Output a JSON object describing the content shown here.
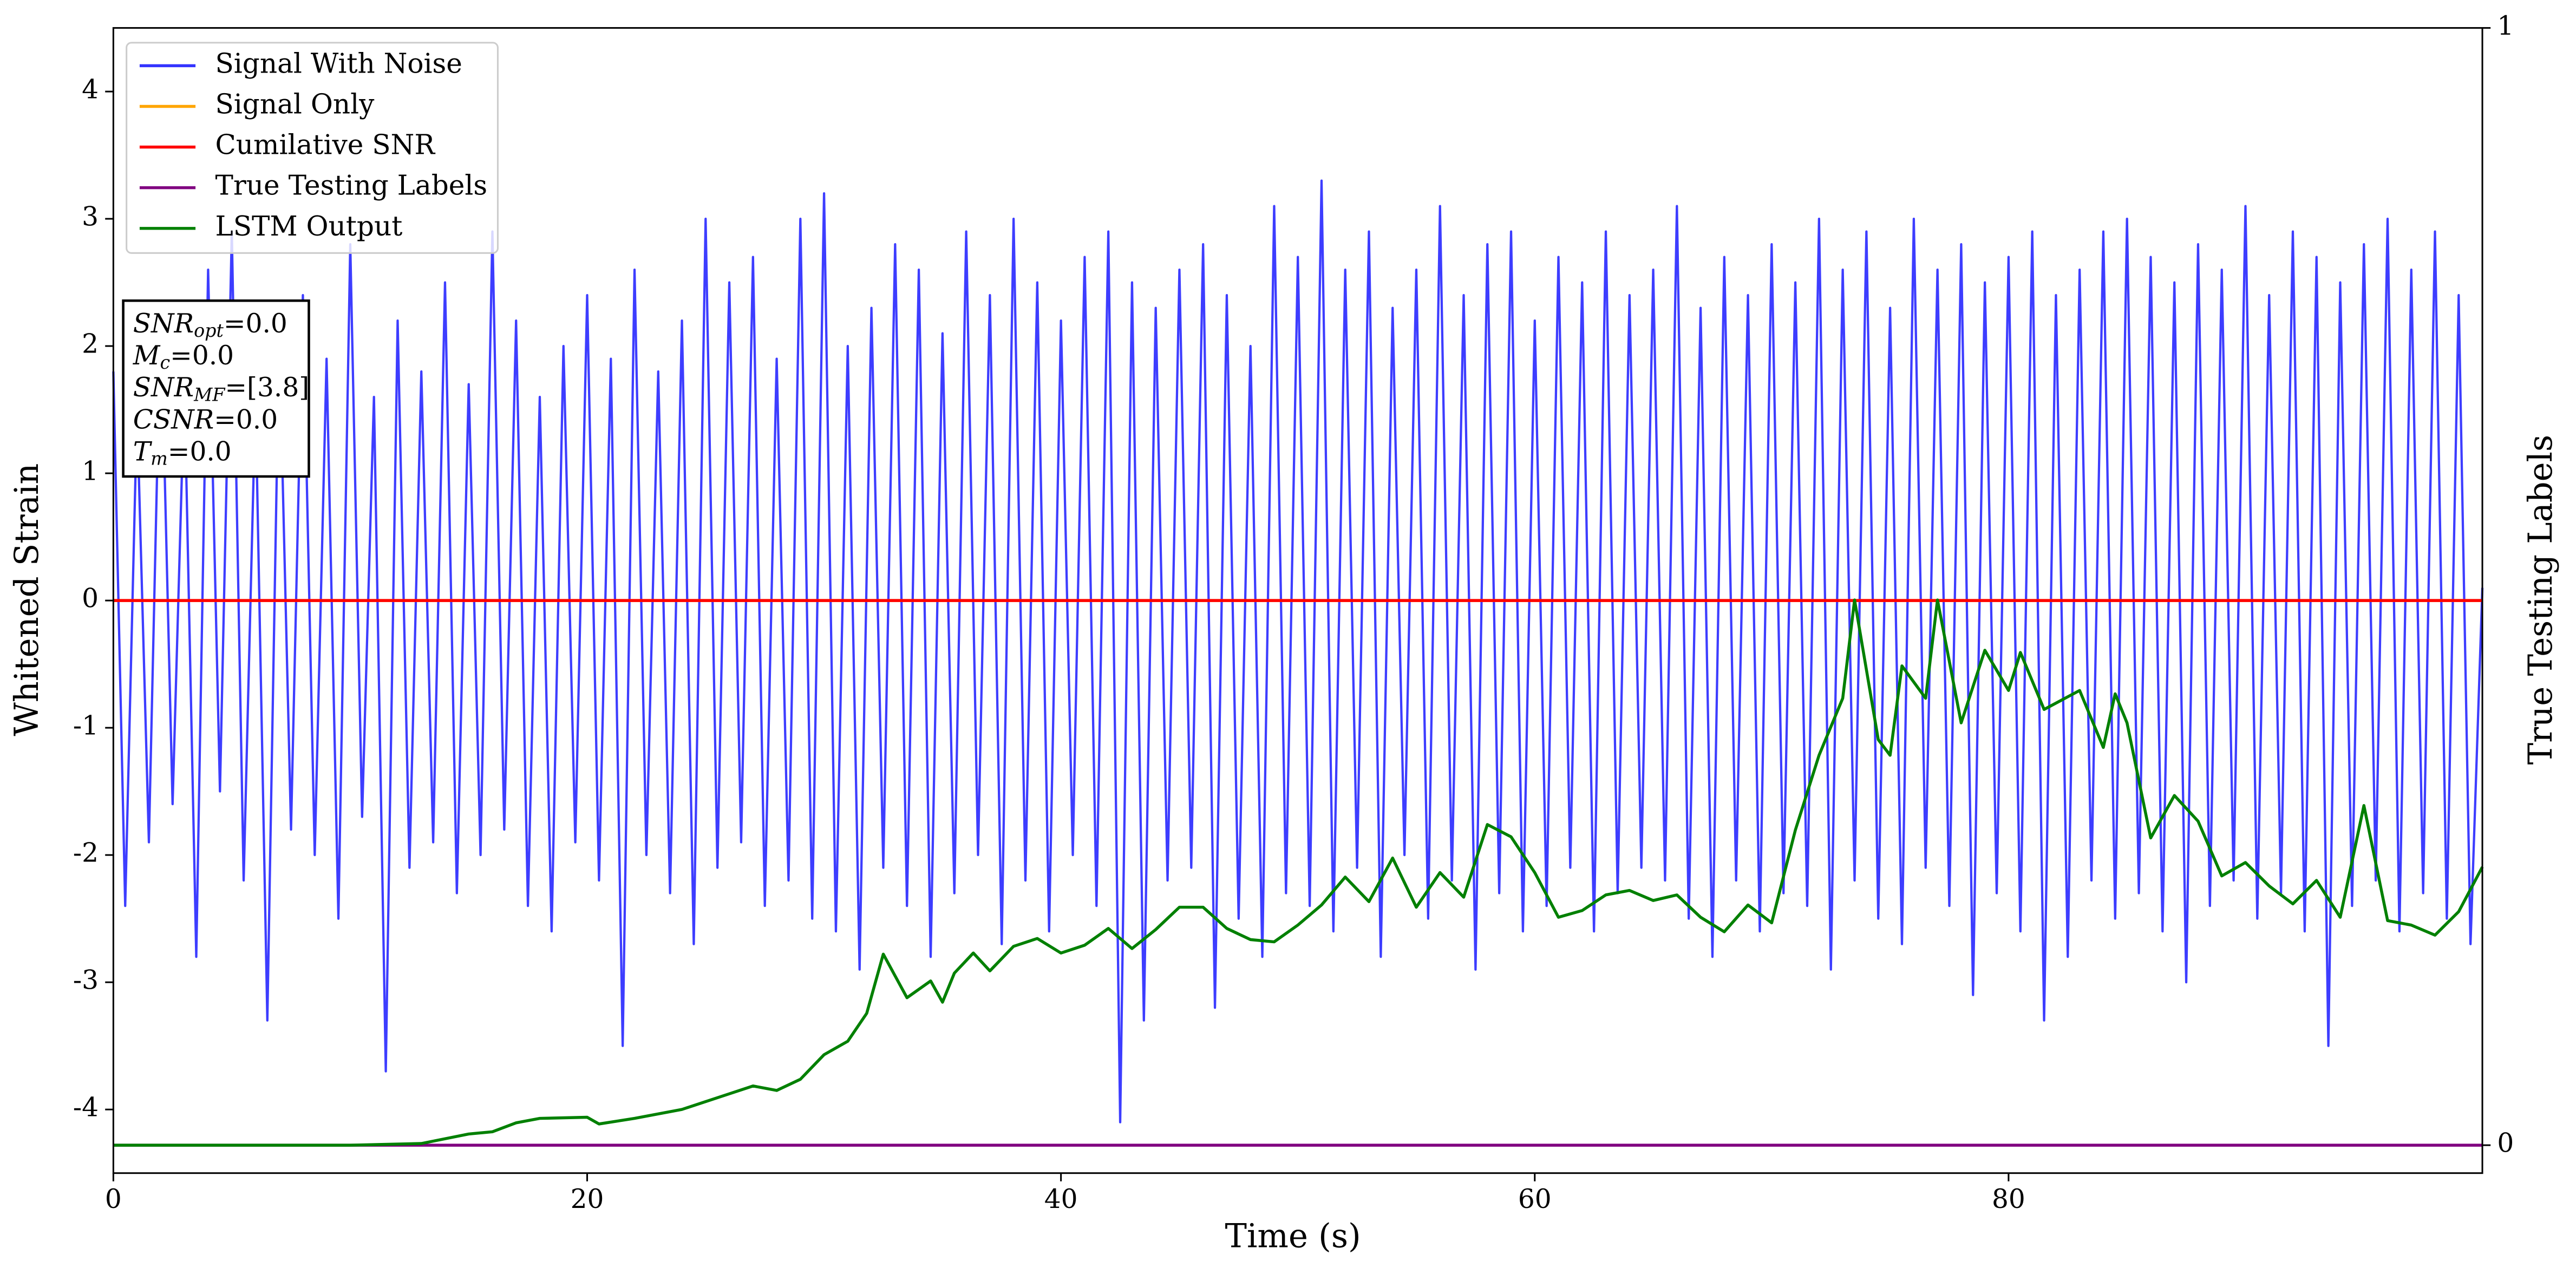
{
  "chart_data": {
    "type": "line",
    "xlabel": "Time (s)",
    "ylabel": "Whitened Strain",
    "y2label": "True Testing Labels",
    "xlim": [
      0,
      100
    ],
    "xticks": [
      0,
      20,
      40,
      60,
      80
    ],
    "ylim": [
      -4.5,
      4.5
    ],
    "yticks": [
      -4,
      -3,
      -2,
      -1,
      0,
      1,
      2,
      3,
      4
    ],
    "y2lim": [
      -0.025,
      1
    ],
    "y2ticks": [
      0,
      1
    ],
    "legend": "upper left",
    "annotation": [
      {
        "text": "SNR",
        "sub": "opt",
        "rest": "=0.0"
      },
      {
        "text": "M",
        "sub": "c",
        "rest": "=0.0"
      },
      {
        "text": "SNR",
        "sub": "MF",
        "rest": "=[3.8]"
      },
      {
        "text": "CSNR",
        "rest": "=0.0"
      },
      {
        "text": "T",
        "sub": "m",
        "rest": "=0.0"
      }
    ],
    "series": [
      {
        "name": "Signal With Noise",
        "color": "#3333ff",
        "x": [
          0,
          0.5,
          1,
          1.5,
          2,
          2.5,
          3,
          3.5,
          4,
          4.5,
          5,
          5.5,
          6,
          6.5,
          7,
          7.5,
          8,
          8.5,
          9,
          9.5,
          10,
          10.5,
          11,
          11.5,
          12,
          12.5,
          13,
          13.5,
          14,
          14.5,
          15,
          15.5,
          16,
          16.5,
          17,
          17.5,
          18,
          18.5,
          19,
          19.5,
          20,
          20.5,
          21,
          21.5,
          22,
          22.5,
          23,
          23.5,
          24,
          24.5,
          25,
          25.5,
          26,
          26.5,
          27,
          27.5,
          28,
          28.5,
          29,
          29.5,
          30,
          30.5,
          31,
          31.5,
          32,
          32.5,
          33,
          33.5,
          34,
          34.5,
          35,
          35.5,
          36,
          36.5,
          37,
          37.5,
          38,
          38.5,
          39,
          39.5,
          40,
          40.5,
          41,
          41.5,
          42,
          42.5,
          43,
          43.5,
          44,
          44.5,
          45,
          45.5,
          46,
          46.5,
          47,
          47.5,
          48,
          48.5,
          49,
          49.5,
          50,
          50.5,
          51,
          51.5,
          52,
          52.5,
          53,
          53.5,
          54,
          54.5,
          55,
          55.5,
          56,
          56.5,
          57,
          57.5,
          58,
          58.5,
          59,
          59.5,
          60,
          60.5,
          61,
          61.5,
          62,
          62.5,
          63,
          63.5,
          64,
          64.5,
          65,
          65.5,
          66,
          66.5,
          67,
          67.5,
          68,
          68.5,
          69,
          69.5,
          70,
          70.5,
          71,
          71.5,
          72,
          72.5,
          73,
          73.5,
          74,
          74.5,
          75,
          75.5,
          76,
          76.5,
          77,
          77.5,
          78,
          78.5,
          79,
          79.5,
          80,
          80.5,
          81,
          81.5,
          82,
          82.5,
          83,
          83.5,
          84,
          84.5,
          85,
          85.5,
          86,
          86.5,
          87,
          87.5,
          88,
          88.5,
          89,
          89.5,
          90,
          90.5,
          91,
          91.5,
          92,
          92.5,
          93,
          93.5,
          94,
          94.5,
          95,
          95.5,
          96,
          96.5,
          97,
          97.5,
          98,
          98.5,
          99,
          99.5,
          100
        ],
        "values": [
          1.8,
          -2.4,
          1.5,
          -1.9,
          2.3,
          -1.6,
          1.7,
          -2.8,
          2.6,
          -1.5,
          2.9,
          -2.2,
          1.6,
          -3.3,
          2.1,
          -1.8,
          2.4,
          -2.0,
          1.9,
          -2.5,
          2.8,
          -1.7,
          1.6,
          -3.7,
          2.2,
          -2.1,
          1.8,
          -1.9,
          2.5,
          -2.3,
          1.7,
          -2.0,
          2.9,
          -1.8,
          2.2,
          -2.4,
          1.6,
          -2.6,
          2.0,
          -1.9,
          2.4,
          -2.2,
          1.9,
          -3.5,
          2.6,
          -2.0,
          1.8,
          -2.3,
          2.2,
          -2.7,
          3.0,
          -2.1,
          2.5,
          -1.9,
          2.7,
          -2.4,
          1.9,
          -2.2,
          3.0,
          -2.5,
          3.2,
          -2.6,
          2.0,
          -2.9,
          2.3,
          -2.1,
          2.8,
          -2.4,
          2.6,
          -2.8,
          2.1,
          -2.3,
          2.9,
          -2.0,
          2.4,
          -2.7,
          3.0,
          -2.2,
          2.5,
          -2.6,
          2.2,
          -2.0,
          2.7,
          -2.4,
          2.9,
          -4.1,
          2.5,
          -3.3,
          2.3,
          -2.2,
          2.6,
          -2.1,
          2.8,
          -3.2,
          2.4,
          -2.5,
          2.0,
          -2.8,
          3.1,
          -2.3,
          2.7,
          -2.4,
          3.3,
          -2.6,
          2.6,
          -2.1,
          2.9,
          -2.8,
          2.3,
          -2.0,
          2.6,
          -2.5,
          3.1,
          -2.2,
          2.4,
          -2.9,
          2.8,
          -2.3,
          2.9,
          -2.6,
          2.2,
          -2.4,
          2.7,
          -2.1,
          2.5,
          -2.6,
          2.9,
          -2.3,
          2.4,
          -2.1,
          2.6,
          -2.2,
          3.1,
          -2.5,
          2.3,
          -2.8,
          2.7,
          -2.2,
          2.4,
          -2.6,
          2.8,
          -2.3,
          2.5,
          -2.4,
          3.0,
          -2.9,
          2.6,
          -2.2,
          2.9,
          -2.5,
          2.3,
          -2.7,
          3.0,
          -2.1,
          2.6,
          -2.4,
          2.8,
          -3.1,
          2.5,
          -2.3,
          2.7,
          -2.6,
          2.9,
          -3.3,
          2.4,
          -2.8,
          2.6,
          -2.2,
          2.9,
          -2.5,
          3.0,
          -2.3,
          2.7,
          -2.6,
          2.5,
          -3.0,
          2.8,
          -2.4,
          2.6,
          -2.2,
          3.1,
          -2.5,
          2.4,
          -2.3,
          2.9,
          -2.6,
          2.7,
          -3.5,
          2.5,
          -2.4,
          2.8,
          -2.2,
          3.0,
          -2.6,
          2.6,
          -2.3,
          2.9,
          -2.5,
          2.4,
          -2.7,
          0.1
        ]
      },
      {
        "name": "Signal Only",
        "color": "#ffa500",
        "x": [
          0,
          100
        ],
        "values": [
          0,
          0
        ]
      },
      {
        "name": "Cumilative SNR",
        "color": "#ff0000",
        "x": [
          0,
          100
        ],
        "values": [
          0,
          0
        ]
      },
      {
        "name": "True Testing Labels",
        "color": "#800080",
        "axis": "y2",
        "x": [
          0,
          100
        ],
        "values": [
          0,
          0
        ]
      },
      {
        "name": "LSTM Output",
        "color": "#008000",
        "axis": "y2",
        "x": [
          0,
          10,
          13,
          15,
          16,
          17,
          18,
          20,
          20.5,
          22,
          24,
          26,
          27,
          28,
          29,
          30,
          31,
          31.8,
          32.5,
          33.5,
          34.5,
          35,
          35.5,
          36.3,
          37,
          38,
          39,
          40,
          41,
          42,
          43,
          44,
          45,
          46,
          47,
          48,
          49,
          50,
          51,
          52,
          53,
          54,
          55,
          56,
          57,
          58,
          59,
          60,
          61,
          62,
          63,
          64,
          65,
          66,
          67,
          68,
          69,
          70,
          71,
          72,
          73,
          73.5,
          74.5,
          75,
          75.5,
          76.5,
          77,
          78,
          79,
          80,
          80.5,
          81.5,
          83,
          84,
          84.5,
          85,
          86,
          87,
          88,
          89,
          90,
          91,
          92,
          93,
          94,
          95,
          96,
          97,
          98,
          99,
          100
        ],
        "values": [
          0,
          0,
          0.0015,
          0.01,
          0.012,
          0.02,
          0.024,
          0.025,
          0.019,
          0.024,
          0.032,
          0.046,
          0.053,
          0.049,
          0.059,
          0.081,
          0.093,
          0.118,
          0.171,
          0.132,
          0.147,
          0.128,
          0.154,
          0.172,
          0.156,
          0.178,
          0.185,
          0.172,
          0.179,
          0.194,
          0.176,
          0.193,
          0.213,
          0.213,
          0.194,
          0.184,
          0.182,
          0.197,
          0.215,
          0.24,
          0.218,
          0.257,
          0.213,
          0.244,
          0.222,
          0.287,
          0.276,
          0.244,
          0.204,
          0.21,
          0.224,
          0.228,
          0.219,
          0.224,
          0.204,
          0.191,
          0.215,
          0.199,
          0.282,
          0.349,
          0.4,
          0.488,
          0.363,
          0.349,
          0.429,
          0.4,
          0.488,
          0.378,
          0.443,
          0.407,
          0.441,
          0.39,
          0.407,
          0.356,
          0.404,
          0.378,
          0.275,
          0.313,
          0.29,
          0.241,
          0.253,
          0.232,
          0.216,
          0.237,
          0.204,
          0.304,
          0.201,
          0.197,
          0.188,
          0.209,
          0.249
        ]
      }
    ]
  }
}
